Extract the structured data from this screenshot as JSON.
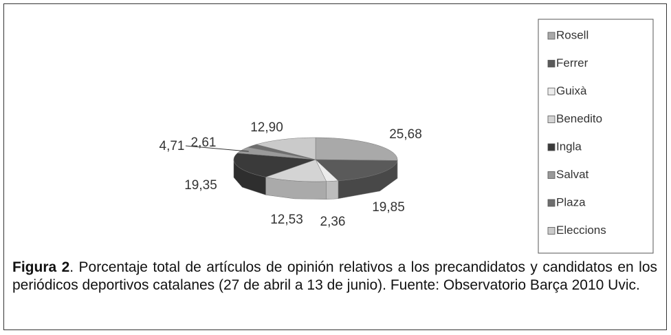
{
  "chart_data": {
    "type": "pie3d",
    "categories": [
      "Rosell",
      "Ferrer",
      "Guixà",
      "Benedito",
      "Ingla",
      "Salvat",
      "Plaza",
      "Eleccions"
    ],
    "values": [
      25.68,
      19.85,
      2.36,
      12.53,
      19.35,
      4.71,
      2.61,
      12.9
    ],
    "value_labels": [
      "25,68",
      "19,85",
      "2,36",
      "12,53",
      "19,35",
      "4,71",
      "2,61",
      "12,90"
    ],
    "colors": [
      "#a9a9a9",
      "#5a5a5a",
      "#ececec",
      "#d4d4d4",
      "#3a3a3a",
      "#9a9a9a",
      "#6e6e6e",
      "#cacaca"
    ],
    "legend": "right"
  },
  "caption": {
    "label": "Figura 2",
    "text": ". Porcentaje total de artículos de opinión relativos a los precandidatos y candidatos en los periódicos deportivos catalanes (27 de abril a 13 de junio). Fuente: Observatorio Barça 2010 Uvic."
  }
}
